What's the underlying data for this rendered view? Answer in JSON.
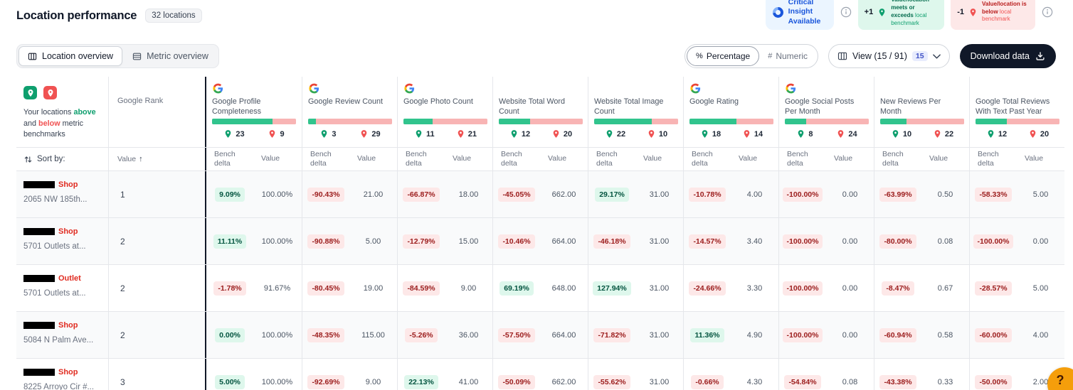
{
  "header": {
    "title": "Location performance",
    "locations_badge": "32 locations",
    "insight_label": "Critical Insight Available",
    "legend": {
      "positive": {
        "delta": "+1",
        "strong1": "Value/location",
        "strong2": "meets or exceeds",
        "light": "local benchmark"
      },
      "negative": {
        "delta": "-1",
        "strong1": "Value/location is",
        "strong2": "below",
        "light": "local benchmark"
      }
    }
  },
  "toolbar": {
    "tab_location": "Location overview",
    "tab_metric": "Metric overview",
    "percent_glyph": "%",
    "hash_glyph": "#",
    "mode_percentage": "Percentage",
    "mode_numeric": "Numeric",
    "view_label": "View (15 / 91)",
    "view_badge": "15",
    "download_label": "Download data"
  },
  "table": {
    "legend": {
      "pre": "Your locations ",
      "above": "above",
      "mid": " and ",
      "below": "below",
      "post": " metric benchmarks"
    },
    "rank_header": "Google Rank",
    "sort_by": "Sort by:",
    "rank_sort_label": "Value",
    "rank_sort_arrow": "↑",
    "subheader_bench": "Bench delta",
    "subheader_value": "Value",
    "metrics": [
      {
        "name": "Google Profile Completeness",
        "has_icon": true,
        "green": 23,
        "red": 9
      },
      {
        "name": "Google Review Count",
        "has_icon": true,
        "green": 3,
        "red": 29
      },
      {
        "name": "Google Photo Count",
        "has_icon": true,
        "green": 11,
        "red": 21
      },
      {
        "name": "Website Total Word Count",
        "has_icon": false,
        "green": 12,
        "red": 20
      },
      {
        "name": "Website Total Image Count",
        "has_icon": false,
        "green": 22,
        "red": 10
      },
      {
        "name": "Google Rating",
        "has_icon": true,
        "green": 18,
        "red": 14
      },
      {
        "name": "Google Social Posts Per Month",
        "has_icon": true,
        "green": 8,
        "red": 24
      },
      {
        "name": "New Reviews Per Month",
        "has_icon": false,
        "green": 10,
        "red": 22
      },
      {
        "name": "Google Total Reviews With Text Past Year",
        "has_icon": false,
        "green": 12,
        "red": 20
      }
    ],
    "rows": [
      {
        "brand": "Shop",
        "address": "2065 NW 185th...",
        "rank": "1",
        "shaded": true,
        "cells": [
          {
            "bench": "9.09%",
            "positive": true,
            "value": "100.00%"
          },
          {
            "bench": "-90.43%",
            "positive": false,
            "value": "21.00"
          },
          {
            "bench": "-66.87%",
            "positive": false,
            "value": "18.00"
          },
          {
            "bench": "-45.05%",
            "positive": false,
            "value": "662.00"
          },
          {
            "bench": "29.17%",
            "positive": true,
            "value": "31.00"
          },
          {
            "bench": "-10.78%",
            "positive": false,
            "value": "4.00"
          },
          {
            "bench": "-100.00%",
            "positive": false,
            "value": "0.00"
          },
          {
            "bench": "-63.99%",
            "positive": false,
            "value": "0.50"
          },
          {
            "bench": "-58.33%",
            "positive": false,
            "value": "5.00"
          }
        ]
      },
      {
        "brand": "Shop",
        "address": "5701 Outlets at...",
        "rank": "2",
        "shaded": true,
        "cells": [
          {
            "bench": "11.11%",
            "positive": true,
            "value": "100.00%"
          },
          {
            "bench": "-90.88%",
            "positive": false,
            "value": "5.00"
          },
          {
            "bench": "-12.79%",
            "positive": false,
            "value": "15.00"
          },
          {
            "bench": "-10.46%",
            "positive": false,
            "value": "664.00"
          },
          {
            "bench": "-46.18%",
            "positive": false,
            "value": "31.00"
          },
          {
            "bench": "-14.57%",
            "positive": false,
            "value": "3.40"
          },
          {
            "bench": "-100.00%",
            "positive": false,
            "value": "0.00"
          },
          {
            "bench": "-80.00%",
            "positive": false,
            "value": "0.08"
          },
          {
            "bench": "-100.00%",
            "positive": false,
            "value": "0.00"
          }
        ]
      },
      {
        "brand": "Outlet",
        "address": "5701 Outlets at...",
        "rank": "2",
        "shaded": false,
        "cells": [
          {
            "bench": "-1.78%",
            "positive": false,
            "value": "91.67%"
          },
          {
            "bench": "-80.45%",
            "positive": false,
            "value": "19.00"
          },
          {
            "bench": "-84.59%",
            "positive": false,
            "value": "9.00"
          },
          {
            "bench": "69.19%",
            "positive": true,
            "value": "648.00"
          },
          {
            "bench": "127.94%",
            "positive": true,
            "value": "31.00"
          },
          {
            "bench": "-24.66%",
            "positive": false,
            "value": "3.30"
          },
          {
            "bench": "-100.00%",
            "positive": false,
            "value": "0.00"
          },
          {
            "bench": "-8.47%",
            "positive": false,
            "value": "0.67"
          },
          {
            "bench": "-28.57%",
            "positive": false,
            "value": "5.00"
          }
        ]
      },
      {
        "brand": "Shop",
        "address": "5084 N Palm Ave...",
        "rank": "2",
        "shaded": true,
        "cells": [
          {
            "bench": "0.00%",
            "positive": true,
            "value": "100.00%"
          },
          {
            "bench": "-48.35%",
            "positive": false,
            "value": "115.00"
          },
          {
            "bench": "-5.26%",
            "positive": false,
            "value": "36.00"
          },
          {
            "bench": "-57.50%",
            "positive": false,
            "value": "664.00"
          },
          {
            "bench": "-71.82%",
            "positive": false,
            "value": "31.00"
          },
          {
            "bench": "11.36%",
            "positive": true,
            "value": "4.90"
          },
          {
            "bench": "-100.00%",
            "positive": false,
            "value": "0.00"
          },
          {
            "bench": "-60.94%",
            "positive": false,
            "value": "0.58"
          },
          {
            "bench": "-60.00%",
            "positive": false,
            "value": "4.00"
          }
        ]
      },
      {
        "brand": "Shop",
        "address": "8225 Arroyo Cir #...",
        "rank": "3",
        "shaded": false,
        "cells": [
          {
            "bench": "5.00%",
            "positive": true,
            "value": "100.00%"
          },
          {
            "bench": "-92.69%",
            "positive": false,
            "value": "9.00"
          },
          {
            "bench": "22.13%",
            "positive": true,
            "value": "41.00"
          },
          {
            "bench": "-50.09%",
            "positive": false,
            "value": "662.00"
          },
          {
            "bench": "-55.62%",
            "positive": false,
            "value": "31.00"
          },
          {
            "bench": "-0.66%",
            "positive": false,
            "value": "4.30"
          },
          {
            "bench": "-54.84%",
            "positive": false,
            "value": "0.08"
          },
          {
            "bench": "-43.38%",
            "positive": false,
            "value": "0.33"
          },
          {
            "bench": "-50.00%",
            "positive": false,
            "value": "2.00"
          }
        ]
      }
    ]
  },
  "help_label": "?"
}
